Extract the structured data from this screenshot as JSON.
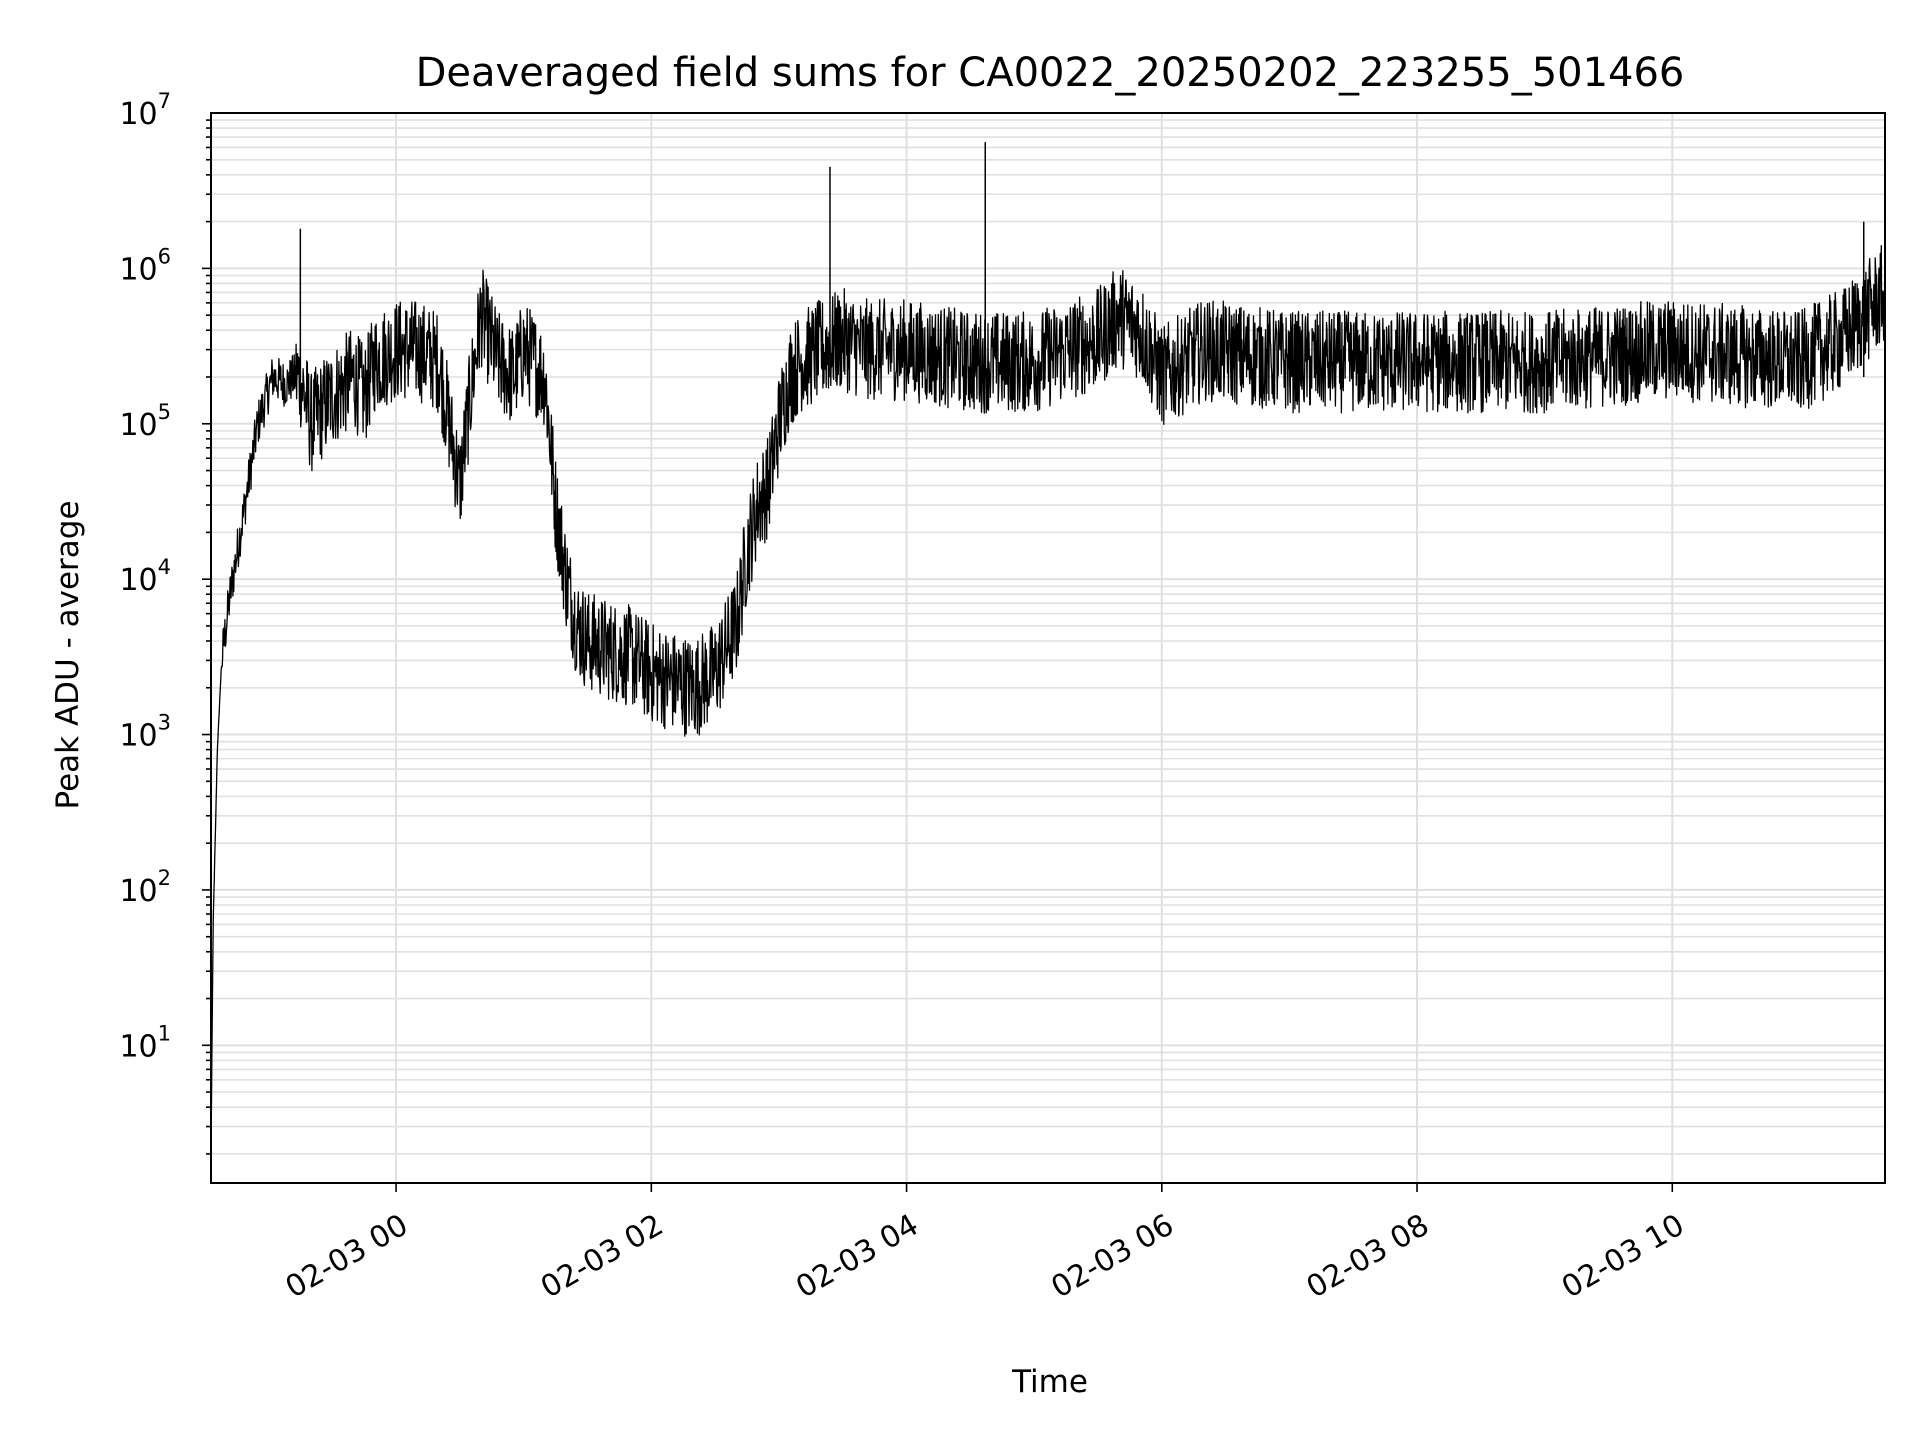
{
  "chart_data": {
    "type": "line",
    "title": "Deaveraged field sums for CA0022_20250202_223255_501466",
    "xlabel": "Time",
    "ylabel": "Peak ADU - average",
    "yscale": "log",
    "ylim": [
      1.3,
      10000000
    ],
    "xlim": [
      "2025-02-02 22:33",
      "2025-02-03 11:40"
    ],
    "grid": true,
    "line_color": "#000000",
    "grid_color": "#e0e0e0",
    "x_ticks": [
      "02-03 00",
      "02-03 02",
      "02-03 04",
      "02-03 06",
      "02-03 08",
      "02-03 10"
    ],
    "y_ticks": [
      {
        "base": "10",
        "exp": "1",
        "value": 10
      },
      {
        "base": "10",
        "exp": "2",
        "value": 100
      },
      {
        "base": "10",
        "exp": "3",
        "value": 1000
      },
      {
        "base": "10",
        "exp": "4",
        "value": 10000
      },
      {
        "base": "10",
        "exp": "5",
        "value": 100000
      },
      {
        "base": "10",
        "exp": "6",
        "value": 1000000
      },
      {
        "base": "10",
        "exp": "7",
        "value": 10000000
      }
    ],
    "series": [
      {
        "x": [
          "2025-02-02 22:33",
          "2025-02-02 22:34",
          "2025-02-02 22:36",
          "2025-02-02 22:38",
          "2025-02-02 22:42",
          "2025-02-02 22:48",
          "2025-02-02 22:55",
          "2025-02-02 23:02",
          "2025-02-02 23:08",
          "2025-02-02 23:12",
          "2025-02-02 23:15",
          "2025-02-02 23:20",
          "2025-02-02 23:30",
          "2025-02-02 23:40",
          "2025-02-02 23:45",
          "2025-02-02 23:50",
          "2025-02-03 00:00",
          "2025-02-03 00:10",
          "2025-02-03 00:20",
          "2025-02-03 00:30",
          "2025-02-03 00:36",
          "2025-02-03 00:40",
          "2025-02-03 00:48",
          "2025-02-03 00:55",
          "2025-02-03 01:00",
          "2025-02-03 01:10",
          "2025-02-03 01:15",
          "2025-02-03 01:20",
          "2025-02-03 01:25",
          "2025-02-03 01:30",
          "2025-02-03 01:40",
          "2025-02-03 01:50",
          "2025-02-03 02:00",
          "2025-02-03 02:10",
          "2025-02-03 02:20",
          "2025-02-03 02:30",
          "2025-02-03 02:40",
          "2025-02-03 02:45",
          "2025-02-03 02:50",
          "2025-02-03 02:55",
          "2025-02-03 03:00",
          "2025-02-03 03:05",
          "2025-02-03 03:10",
          "2025-02-03 03:20",
          "2025-02-03 03:30",
          "2025-02-03 03:40",
          "2025-02-03 04:00",
          "2025-02-03 04:30",
          "2025-02-03 05:00",
          "2025-02-03 05:30",
          "2025-02-03 05:40",
          "2025-02-03 05:50",
          "2025-02-03 06:00",
          "2025-02-03 06:20",
          "2025-02-03 07:00",
          "2025-02-03 08:00",
          "2025-02-03 09:00",
          "2025-02-03 10:00",
          "2025-02-03 11:00",
          "2025-02-03 11:20",
          "2025-02-03 11:40"
        ],
        "y": [
          2,
          60,
          800,
          3000,
          8000,
          25000,
          100000,
          200000,
          180000,
          200000,
          200000,
          100000,
          150000,
          200000,
          150000,
          250000,
          300000,
          300000,
          250000,
          40000,
          200000,
          500000,
          250000,
          200000,
          300000,
          200000,
          30000,
          10000,
          5000,
          4000,
          3500,
          3200,
          2500,
          2200,
          2000,
          2500,
          5000,
          15000,
          30000,
          40000,
          100000,
          200000,
          250000,
          300000,
          350000,
          300000,
          300000,
          250000,
          250000,
          350000,
          500000,
          400000,
          200000,
          300000,
          250000,
          250000,
          250000,
          300000,
          250000,
          350000,
          700000
        ]
      }
    ],
    "spikes": [
      {
        "x": "2025-02-02 23:15",
        "y": 1800000
      },
      {
        "x": "2025-02-03 03:24",
        "y": 4500000
      },
      {
        "x": "2025-02-03 04:37",
        "y": 6500000
      },
      {
        "x": "2025-02-03 11:30",
        "y": 2000000
      }
    ]
  }
}
